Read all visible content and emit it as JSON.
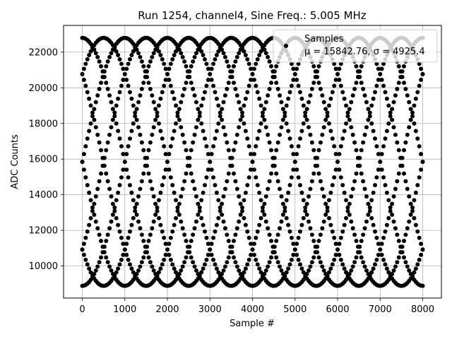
{
  "chart_data": {
    "type": "scatter",
    "title": "Run 1254, channel4, Sine Freq.: 5.005 MHz",
    "xlabel": "Sample #",
    "ylabel": "ADC Counts",
    "xlim": [
      -440,
      8440
    ],
    "ylim": [
      8200,
      23500
    ],
    "xticks": [
      0,
      1000,
      2000,
      3000,
      4000,
      5000,
      6000,
      7000,
      8000
    ],
    "xtick_labels": [
      "0",
      "1000",
      "2000",
      "3000",
      "4000",
      "5000",
      "6000",
      "7000",
      "8000"
    ],
    "yticks": [
      10000,
      12000,
      14000,
      16000,
      18000,
      20000,
      22000
    ],
    "ytick_labels": [
      "10000",
      "12000",
      "14000",
      "16000",
      "18000",
      "20000",
      "22000"
    ],
    "grid": true,
    "legend": {
      "placement": "top-right",
      "entries": [
        "Samples",
        "μ = 15842.76, σ = 4925.4"
      ]
    },
    "series": [
      {
        "name": "Samples",
        "color": "#000000",
        "marker": "filled-circle",
        "x_range": [
          0,
          8000
        ],
        "model": "y = mean + amplitude*sin(2*pi*x/period + phase), phase = 2*pi*k/number_of_traces for k = 0..number_of_traces-1",
        "mean": 15842.76,
        "amplitude": 6960,
        "period": 4000,
        "number_of_traces": 8
      }
    ]
  }
}
